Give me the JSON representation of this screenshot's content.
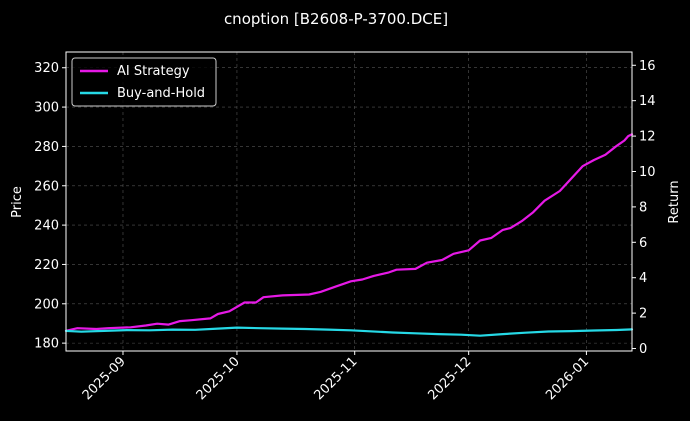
{
  "chart_data": {
    "type": "line",
    "title": "cnoption [B2608-P-3700.DCE]",
    "xlabel": "",
    "ylabel_left": "Price",
    "ylabel_right": "Return",
    "x_range": [
      "2025-08-17",
      "2026-01-13"
    ],
    "ylim_left": [
      176,
      328
    ],
    "ylim_right": [
      -0.14,
      16.75
    ],
    "yticks_left": [
      180,
      200,
      220,
      240,
      260,
      280,
      300,
      320
    ],
    "yticks_right": [
      0,
      2,
      4,
      6,
      8,
      10,
      12,
      14,
      16
    ],
    "xticks": [
      {
        "date": "2025-09-01",
        "label": "2025-09"
      },
      {
        "date": "2025-10-01",
        "label": "2025-10"
      },
      {
        "date": "2025-11-01",
        "label": "2025-11"
      },
      {
        "date": "2025-12-01",
        "label": "2025-12"
      },
      {
        "date": "2026-01-01",
        "label": "2026-01"
      }
    ],
    "grid": true,
    "legend_position": "top-left",
    "background": "#000000",
    "series": [
      {
        "name": "AI Strategy",
        "color": "#e619e6",
        "axis": "right",
        "points": [
          [
            "2025-08-17",
            1.0
          ],
          [
            "2025-08-20",
            1.15
          ],
          [
            "2025-08-25",
            1.1
          ],
          [
            "2025-08-28",
            1.15
          ],
          [
            "2025-09-03",
            1.2
          ],
          [
            "2025-09-07",
            1.3
          ],
          [
            "2025-09-10",
            1.4
          ],
          [
            "2025-09-13",
            1.35
          ],
          [
            "2025-09-16",
            1.55
          ],
          [
            "2025-09-19",
            1.6
          ],
          [
            "2025-09-24",
            1.7
          ],
          [
            "2025-09-26",
            1.95
          ],
          [
            "2025-09-29",
            2.1
          ],
          [
            "2025-10-03",
            2.6
          ],
          [
            "2025-10-06",
            2.6
          ],
          [
            "2025-10-08",
            2.9
          ],
          [
            "2025-10-13",
            3.0
          ],
          [
            "2025-10-20",
            3.05
          ],
          [
            "2025-10-23",
            3.2
          ],
          [
            "2025-10-27",
            3.5
          ],
          [
            "2025-10-31",
            3.8
          ],
          [
            "2025-11-03",
            3.9
          ],
          [
            "2025-11-06",
            4.1
          ],
          [
            "2025-11-10",
            4.3
          ],
          [
            "2025-11-12",
            4.45
          ],
          [
            "2025-11-17",
            4.5
          ],
          [
            "2025-11-20",
            4.85
          ],
          [
            "2025-11-24",
            5.0
          ],
          [
            "2025-11-27",
            5.35
          ],
          [
            "2025-12-01",
            5.55
          ],
          [
            "2025-12-04",
            6.1
          ],
          [
            "2025-12-07",
            6.25
          ],
          [
            "2025-12-10",
            6.7
          ],
          [
            "2025-12-12",
            6.8
          ],
          [
            "2025-12-15",
            7.2
          ],
          [
            "2025-12-18",
            7.7
          ],
          [
            "2025-12-21",
            8.35
          ],
          [
            "2025-12-25",
            8.9
          ],
          [
            "2025-12-28",
            9.6
          ],
          [
            "2025-12-31",
            10.3
          ],
          [
            "2026-01-03",
            10.65
          ],
          [
            "2026-01-06",
            10.95
          ],
          [
            "2026-01-09",
            11.45
          ],
          [
            "2026-01-11",
            11.75
          ],
          [
            "2026-01-12",
            12.0
          ],
          [
            "2026-01-13",
            12.1
          ]
        ]
      },
      {
        "name": "Buy-and-Hold",
        "color": "#26d9e6",
        "axis": "left",
        "points": [
          [
            "2025-08-17",
            186.2
          ],
          [
            "2025-08-21",
            185.8
          ],
          [
            "2025-08-27",
            186.2
          ],
          [
            "2025-09-02",
            186.6
          ],
          [
            "2025-09-08",
            186.5
          ],
          [
            "2025-09-14",
            186.9
          ],
          [
            "2025-09-20",
            186.8
          ],
          [
            "2025-09-26",
            187.4
          ],
          [
            "2025-10-01",
            187.9
          ],
          [
            "2025-10-07",
            187.6
          ],
          [
            "2025-10-13",
            187.4
          ],
          [
            "2025-10-19",
            187.2
          ],
          [
            "2025-10-25",
            186.9
          ],
          [
            "2025-10-31",
            186.5
          ],
          [
            "2025-11-05",
            186.0
          ],
          [
            "2025-11-11",
            185.4
          ],
          [
            "2025-11-17",
            185.0
          ],
          [
            "2025-11-23",
            184.6
          ],
          [
            "2025-11-29",
            184.3
          ],
          [
            "2025-12-04",
            183.8
          ],
          [
            "2025-12-10",
            184.6
          ],
          [
            "2025-12-16",
            185.3
          ],
          [
            "2025-12-22",
            185.9
          ],
          [
            "2025-12-28",
            186.1
          ],
          [
            "2026-01-03",
            186.4
          ],
          [
            "2026-01-09",
            186.7
          ],
          [
            "2026-01-13",
            187.0
          ]
        ]
      }
    ]
  }
}
